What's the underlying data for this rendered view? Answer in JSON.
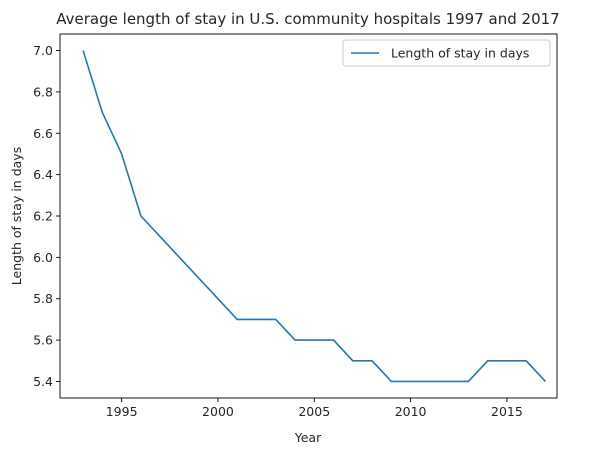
{
  "chart_data": {
    "type": "line",
    "title": "Average length of stay in U.S. community hospitals 1997 and 2017",
    "xlabel": "Year",
    "ylabel": "Length of stay in days",
    "xlim": [
      1991.8,
      2017.6
    ],
    "ylim": [
      5.32,
      7.08
    ],
    "xticks": [
      1995,
      2000,
      2005,
      2010,
      2015
    ],
    "yticks": [
      5.4,
      5.6,
      5.8,
      6.0,
      6.2,
      6.4,
      6.6,
      6.8,
      7.0
    ],
    "grid": false,
    "legend_position": "upper-right",
    "colors": {
      "series": "#1f77b4",
      "axis": "#000000",
      "legend_border": "#cccccc"
    },
    "series": [
      {
        "name": "Length of stay in days",
        "x": [
          1993,
          1994,
          1995,
          1996,
          2001,
          2002,
          2003,
          2004,
          2005,
          2006,
          2007,
          2008,
          2009,
          2010,
          2011,
          2012,
          2013,
          2014,
          2015,
          2016,
          2017
        ],
        "y": [
          7.0,
          6.7,
          6.5,
          6.2,
          5.7,
          5.7,
          5.7,
          5.6,
          5.6,
          5.6,
          5.5,
          5.5,
          5.4,
          5.4,
          5.4,
          5.4,
          5.4,
          5.5,
          5.5,
          5.5,
          5.4
        ]
      }
    ]
  }
}
